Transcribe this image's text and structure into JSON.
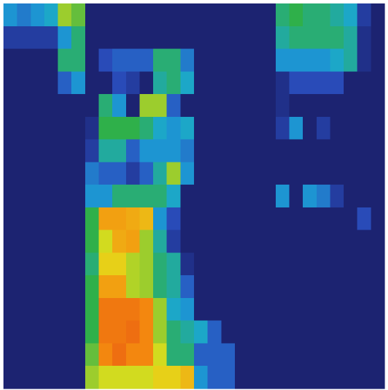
{
  "chart_data": {
    "type": "heatmap",
    "zlim": [
      0,
      1
    ],
    "colorscale": [
      "#1c2371",
      "#2a4fc0",
      "#1aa6d6",
      "#2fb04a",
      "#e4e01a",
      "#f5900f",
      "#e33a14"
    ],
    "values": [
      [
        0.3,
        0.25,
        0.3,
        0.35,
        0.6,
        0.55,
        0,
        0,
        0,
        0,
        0,
        0,
        0,
        0,
        0,
        0,
        0,
        0,
        0,
        0,
        0.45,
        0.5,
        0.45,
        0.45,
        0.4,
        0.35,
        0.1,
        0
      ],
      [
        0.1,
        0.1,
        0.1,
        0.1,
        0.3,
        0.45,
        0,
        0,
        0,
        0,
        0,
        0,
        0,
        0,
        0,
        0,
        0,
        0,
        0,
        0,
        0.4,
        0.45,
        0.45,
        0.45,
        0.45,
        0.4,
        0.05,
        0
      ],
      [
        0,
        0,
        0,
        0,
        0.45,
        0.45,
        0,
        0.15,
        0.2,
        0.2,
        0.2,
        0.45,
        0.45,
        0.25,
        0,
        0,
        0,
        0,
        0,
        0,
        0.3,
        0.3,
        0.3,
        0.3,
        0.35,
        0.4,
        0.05,
        0
      ],
      [
        0,
        0,
        0,
        0,
        0.2,
        0.3,
        0,
        0,
        0.15,
        0.1,
        0,
        0.4,
        0.45,
        0.35,
        0,
        0,
        0,
        0,
        0,
        0,
        0.05,
        0.15,
        0.15,
        0.15,
        0.15,
        0,
        0,
        0
      ],
      [
        0,
        0,
        0,
        0,
        0,
        0,
        0,
        0.45,
        0.3,
        0,
        0.6,
        0.6,
        0.2,
        0,
        0,
        0,
        0,
        0,
        0,
        0,
        0.05,
        0,
        0,
        0,
        0,
        0,
        0,
        0
      ],
      [
        0,
        0,
        0,
        0,
        0,
        0,
        0.05,
        0.5,
        0.5,
        0.5,
        0.45,
        0.35,
        0.3,
        0.35,
        0,
        0,
        0,
        0,
        0,
        0,
        0.1,
        0.3,
        0,
        0.1,
        0,
        0,
        0,
        0
      ],
      [
        0,
        0,
        0,
        0,
        0,
        0,
        0.1,
        0.4,
        0.4,
        0.2,
        0.3,
        0.3,
        0.3,
        0.25,
        0,
        0,
        0,
        0,
        0,
        0,
        0,
        0,
        0,
        0,
        0,
        0,
        0,
        0
      ],
      [
        0,
        0,
        0,
        0,
        0,
        0,
        0.25,
        0.2,
        0.2,
        0.1,
        0.2,
        0.4,
        0.6,
        0.3,
        0,
        0,
        0,
        0,
        0,
        0,
        0,
        0,
        0,
        0,
        0,
        0,
        0,
        0
      ],
      [
        0,
        0,
        0,
        0,
        0,
        0,
        0.3,
        0.3,
        0.45,
        0.45,
        0.45,
        0.45,
        0.35,
        0,
        0,
        0,
        0,
        0,
        0,
        0,
        0.3,
        0,
        0.3,
        0.25,
        0.1,
        0,
        0,
        0
      ],
      [
        0,
        0,
        0,
        0,
        0,
        0,
        0.5,
        0.8,
        0.8,
        0.78,
        0.75,
        0.3,
        0.15,
        0,
        0,
        0,
        0,
        0,
        0,
        0,
        0,
        0,
        0,
        0,
        0,
        0,
        0.15,
        0
      ],
      [
        0,
        0,
        0,
        0,
        0,
        0,
        0.5,
        0.65,
        0.78,
        0.8,
        0.6,
        0.4,
        0.1,
        0,
        0,
        0,
        0,
        0,
        0,
        0,
        0,
        0,
        0,
        0,
        0,
        0,
        0,
        0
      ],
      [
        0,
        0,
        0,
        0,
        0,
        0,
        0.45,
        0.7,
        0.7,
        0.62,
        0.6,
        0.45,
        0.4,
        0.05,
        0,
        0,
        0,
        0,
        0,
        0,
        0,
        0,
        0,
        0,
        0,
        0,
        0,
        0
      ],
      [
        0,
        0,
        0,
        0,
        0,
        0,
        0.5,
        0.8,
        0.8,
        0.62,
        0.6,
        0.45,
        0.4,
        0.2,
        0,
        0,
        0,
        0,
        0,
        0,
        0,
        0,
        0,
        0,
        0,
        0,
        0,
        0
      ],
      [
        0,
        0,
        0,
        0,
        0,
        0,
        0.5,
        0.88,
        0.88,
        0.88,
        0.85,
        0.6,
        0.35,
        0.3,
        0,
        0,
        0,
        0,
        0,
        0,
        0,
        0,
        0,
        0,
        0,
        0,
        0,
        0
      ],
      [
        0,
        0,
        0,
        0,
        0,
        0,
        0.5,
        0.88,
        0.88,
        0.9,
        0.85,
        0.6,
        0.45,
        0.4,
        0.35,
        0.2,
        0,
        0,
        0,
        0,
        0,
        0,
        0,
        0,
        0,
        0,
        0,
        0
      ],
      [
        0,
        0,
        0,
        0,
        0,
        0,
        0.55,
        0.85,
        0.9,
        0.85,
        0.85,
        0.65,
        0.45,
        0.45,
        0.2,
        0.2,
        0.2,
        0,
        0,
        0,
        0,
        0,
        0,
        0,
        0,
        0,
        0,
        0
      ],
      [
        0,
        0,
        0,
        0,
        0,
        0,
        0.6,
        0.65,
        0.65,
        0.65,
        0.65,
        0.7,
        0.7,
        0.75,
        0.3,
        0.2,
        0.2,
        0,
        0,
        0,
        0,
        0,
        0,
        0,
        0,
        0,
        0,
        0
      ]
    ]
  }
}
